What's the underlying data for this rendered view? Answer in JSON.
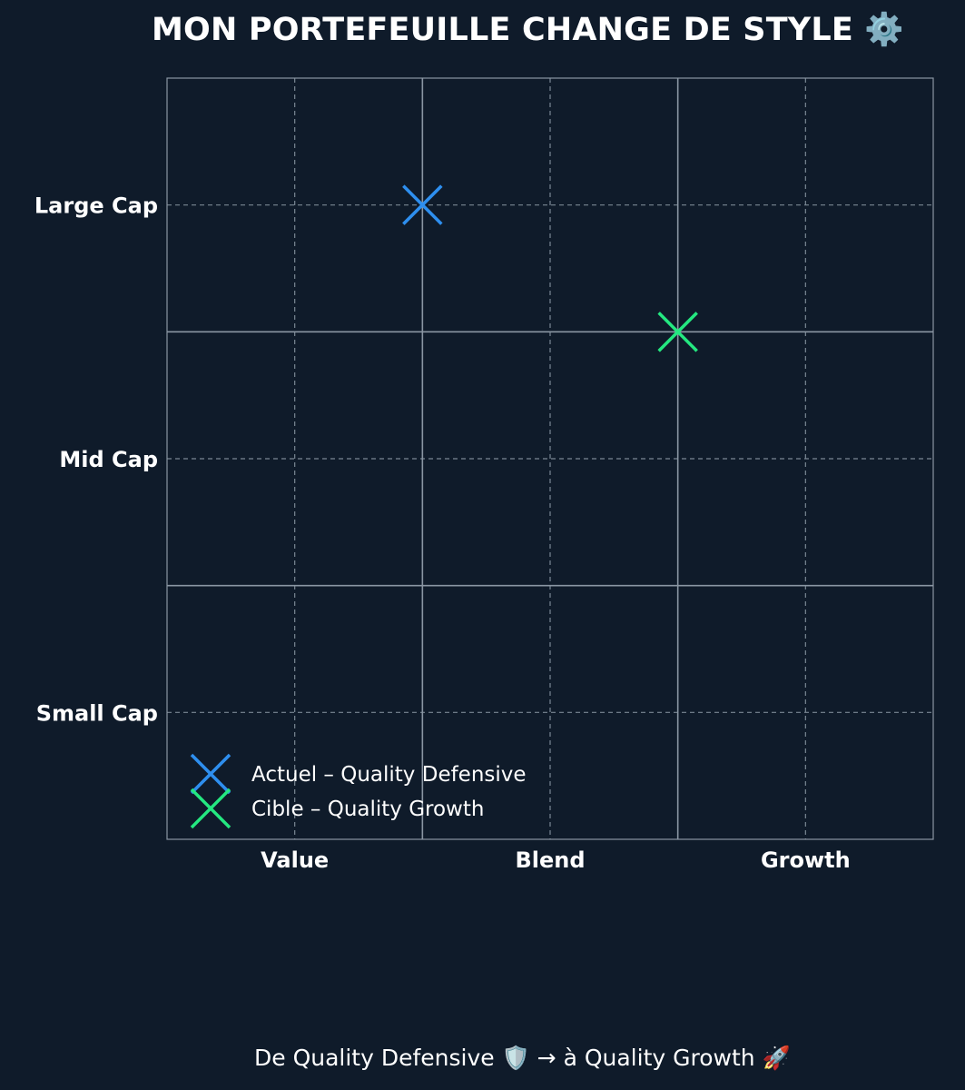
{
  "title": "MON PORTEFEUILLE CHANGE DE STYLE ⚙️",
  "caption": "De Quality Defensive 🛡️ → à Quality Growth 🚀",
  "chart_data": {
    "type": "scatter",
    "x_categories": [
      "Value",
      "Blend",
      "Growth"
    ],
    "y_categories": [
      "Small Cap",
      "Mid Cap",
      "Large Cap"
    ],
    "xlim": [
      0,
      3
    ],
    "ylim": [
      0,
      3
    ],
    "grid": true,
    "legend_position": "lower-left",
    "series": [
      {
        "name": "Actuel – Quality Defensive",
        "marker": "x",
        "color": "#2e8fef",
        "points": [
          {
            "x": 1.0,
            "y": 2.5
          }
        ]
      },
      {
        "name": "Cible – Quality Growth",
        "marker": "x",
        "color": "#24e880",
        "points": [
          {
            "x": 2.0,
            "y": 2.0
          }
        ]
      }
    ]
  },
  "colors": {
    "background": "#0f1b2a",
    "grid_solid": "#8a96a3",
    "grid_dashed": "#7a8794",
    "text": "#ffffff"
  }
}
